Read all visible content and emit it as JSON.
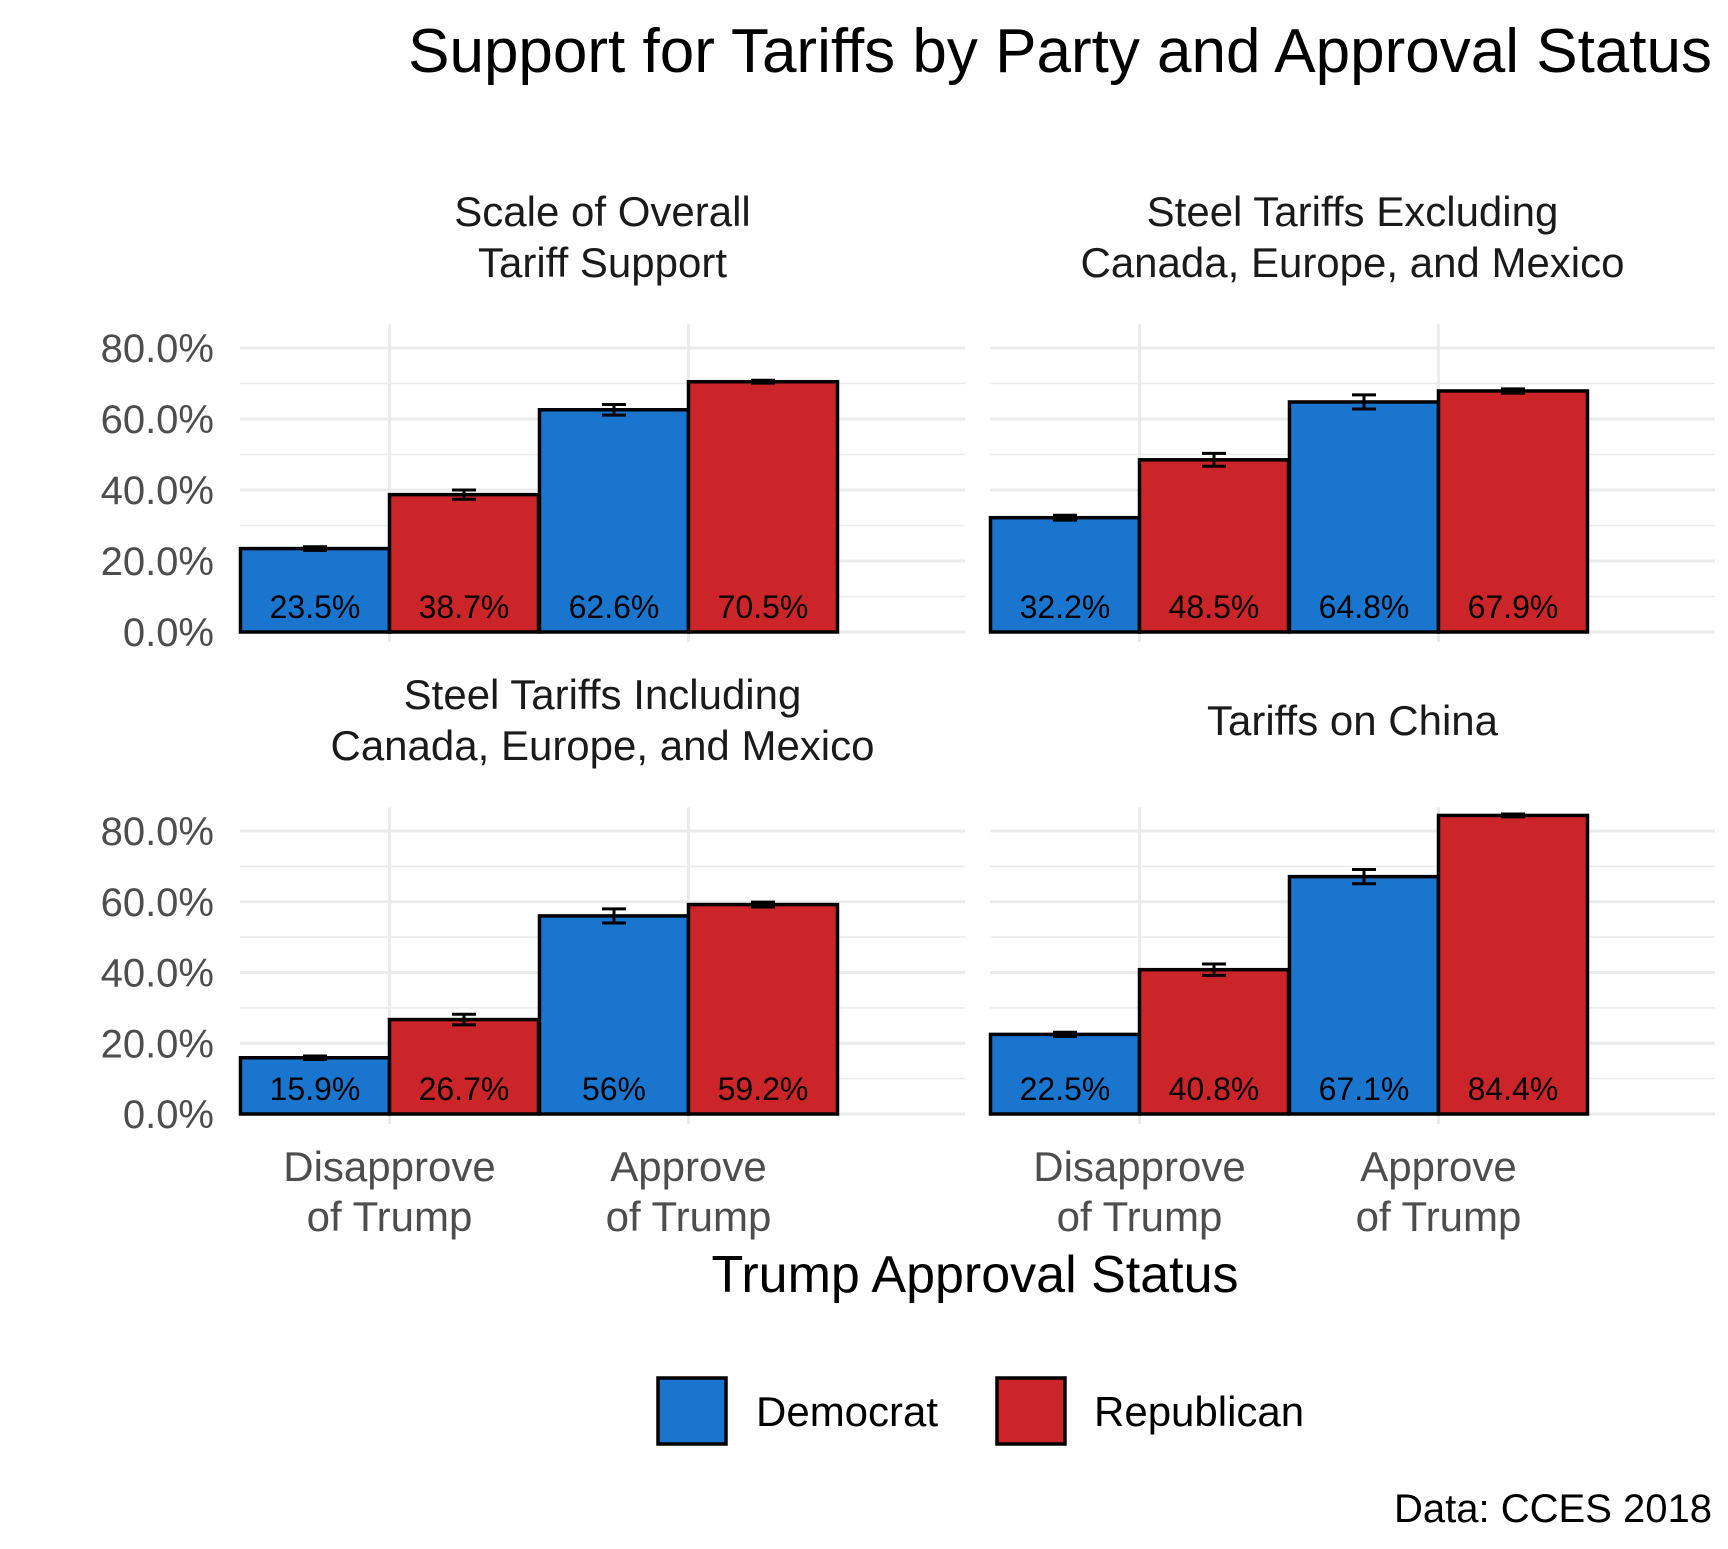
{
  "title": "Support for Tariffs by Party and Approval Status",
  "caption": "Data: CCES 2018",
  "colors": {
    "Democrat": "#1a75cf",
    "Republican": "#cc2529",
    "grid": "#ebebeb",
    "outline": "#000000"
  },
  "chart_data": {
    "type": "bar",
    "layout": "faceted grouped bar, 2x2",
    "xlabel": "Trump Approval Status",
    "ylabel": "",
    "ylim": [
      0,
      85
    ],
    "yticks": [
      "0.0%",
      "20.0%",
      "40.0%",
      "60.0%",
      "80.0%"
    ],
    "ytick_values": [
      0,
      20,
      40,
      60,
      80
    ],
    "categories": [
      "Disapprove of Trump",
      "Approve of Trump"
    ],
    "legend": {
      "position": "bottom",
      "entries": [
        "Democrat",
        "Republican"
      ]
    },
    "grid": true,
    "facets": [
      {
        "title": [
          "Scale of Overall",
          "Tariff Support"
        ],
        "series": [
          {
            "name": "Democrat",
            "values": [
              23.5,
              62.6
            ],
            "labels": [
              "23.5%",
              "62.6%"
            ],
            "error": [
              0.5,
              1.5
            ]
          },
          {
            "name": "Republican",
            "values": [
              38.7,
              70.5
            ],
            "labels": [
              "38.7%",
              "70.5%"
            ],
            "error": [
              1.3,
              0.4
            ]
          }
        ]
      },
      {
        "title": [
          "Steel Tariffs Excluding",
          "Canada, Europe, and Mexico"
        ],
        "series": [
          {
            "name": "Democrat",
            "values": [
              32.2,
              64.8
            ],
            "labels": [
              "32.2%",
              "64.8%"
            ],
            "error": [
              0.7,
              2.0
            ]
          },
          {
            "name": "Republican",
            "values": [
              48.5,
              67.9
            ],
            "labels": [
              "48.5%",
              "67.9%"
            ],
            "error": [
              1.8,
              0.6
            ]
          }
        ]
      },
      {
        "title": [
          "Steel Tariffs Including",
          "Canada, Europe, and Mexico"
        ],
        "series": [
          {
            "name": "Democrat",
            "values": [
              15.9,
              56
            ],
            "labels": [
              "15.9%",
              "56%"
            ],
            "error": [
              0.5,
              2.0
            ]
          },
          {
            "name": "Republican",
            "values": [
              26.7,
              59.2
            ],
            "labels": [
              "26.7%",
              "59.2%"
            ],
            "error": [
              1.5,
              0.7
            ]
          }
        ]
      },
      {
        "title": [
          "Tariffs on China"
        ],
        "series": [
          {
            "name": "Democrat",
            "values": [
              22.5,
              67.1
            ],
            "labels": [
              "22.5%",
              "67.1%"
            ],
            "error": [
              0.6,
              2.0
            ]
          },
          {
            "name": "Republican",
            "values": [
              40.8,
              84.4
            ],
            "labels": [
              "40.8%",
              "84.4%"
            ],
            "error": [
              1.6,
              0.4
            ]
          }
        ]
      }
    ]
  }
}
